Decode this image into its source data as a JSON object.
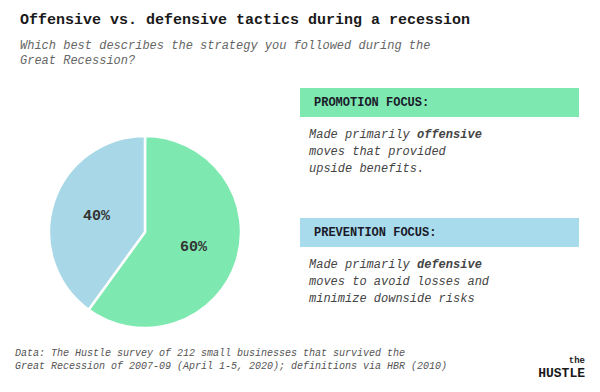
{
  "chart_data": {
    "type": "pie",
    "title": "Offensive vs. defensive tactics during a recession",
    "subtitle": "Which best describes the strategy you followed during the\nGreat Recession?",
    "values": [
      60,
      40
    ],
    "value_labels": [
      "60%",
      "40%"
    ],
    "colors": [
      "#7de8b0",
      "#a8d8e8"
    ],
    "data_labels": true,
    "annotations": [
      {
        "header": "PROMOTION FOCUS:",
        "color": "#7de8b0",
        "lines": [
          "Made primarily offensive",
          "moves that provided",
          "upside benefits."
        ],
        "bold": "offensive"
      },
      {
        "header": "PREVENTION FOCUS:",
        "color": "#a8dcec",
        "lines": [
          "Made primarily defensive",
          "moves to avoid losses and",
          "minimize downside risks"
        ],
        "bold": "defensive"
      }
    ],
    "footer": "Data: The Hustle survey of 212 small businesses that survived the\nGreat Recession of 2007-09 (April 1-5, 2020); definitions via HBR (2010)",
    "logo": [
      "the",
      "HUSTLE"
    ]
  }
}
